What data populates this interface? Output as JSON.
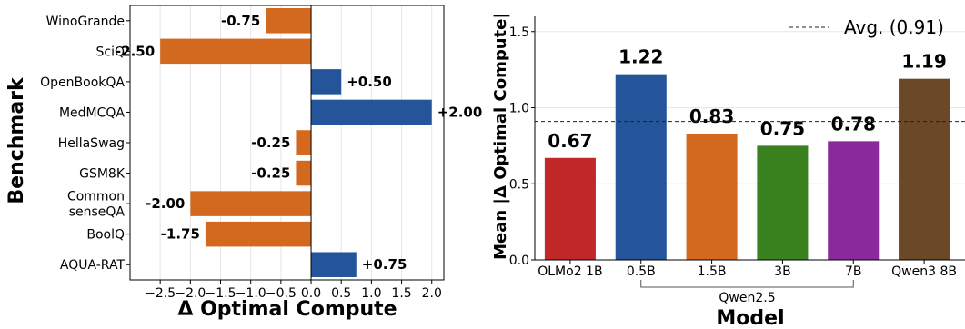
{
  "chart_data": [
    {
      "type": "bar",
      "orientation": "horizontal",
      "title": "",
      "xlabel": "Δ Optimal Compute",
      "ylabel": "Benchmark",
      "xlim": [
        -3.0,
        2.2
      ],
      "xticks": [
        -2.5,
        -2.0,
        -1.5,
        -1.0,
        -0.5,
        0.0,
        0.5,
        1.0,
        1.5,
        2.0
      ],
      "xtick_labels": [
        "−2.5",
        "−2.0",
        "−1.5",
        "−1.0",
        "−0.5",
        "0.0",
        "0.5",
        "1.0",
        "1.5",
        "2.0"
      ],
      "grid": "vertical",
      "categories": [
        "WinoGrande",
        "SciQ",
        "OpenBookQA",
        "MedMCQA",
        "HellaSwag",
        "GSM8K",
        "Common senseQA",
        "BoolQ",
        "AQUA-RAT"
      ],
      "category_lines": [
        [
          "WinoGrande"
        ],
        [
          "SciQ"
        ],
        [
          "OpenBookQA"
        ],
        [
          "MedMCQA"
        ],
        [
          "HellaSwag"
        ],
        [
          "GSM8K"
        ],
        [
          "Common",
          "senseQA"
        ],
        [
          "BoolQ"
        ],
        [
          "AQUA-RAT"
        ]
      ],
      "values": [
        -0.75,
        -2.5,
        0.5,
        2.0,
        -0.25,
        -0.25,
        -2.0,
        -1.75,
        0.75
      ],
      "value_labels": [
        "-0.75",
        "-2.50",
        "+0.50",
        "+2.00",
        "-0.25",
        "-0.25",
        "-2.00",
        "-1.75",
        "+0.75"
      ],
      "colors": {
        "negative": "#d2691e",
        "positive": "#24559a"
      }
    },
    {
      "type": "bar",
      "orientation": "vertical",
      "title": "",
      "xlabel": "Model",
      "ylabel": "Mean |Δ Optimal Compute|",
      "ylim": [
        0.0,
        1.6
      ],
      "yticks": [
        0.0,
        0.5,
        1.0,
        1.5
      ],
      "ytick_labels": [
        "0.0",
        "0.5",
        "1.0",
        "1.5"
      ],
      "grid": "horizontal",
      "categories": [
        "OLMo2 1B",
        "0.5B",
        "1.5B",
        "3B",
        "7B",
        "Qwen3 8B"
      ],
      "values": [
        0.67,
        1.22,
        0.83,
        0.75,
        0.78,
        1.19
      ],
      "value_labels": [
        "0.67",
        "1.22",
        "0.83",
        "0.75",
        "0.78",
        "1.19"
      ],
      "colors": [
        "#c0282a",
        "#24559a",
        "#d2691e",
        "#3a8220",
        "#8a2a9a",
        "#6a4828"
      ],
      "reference_line": {
        "value": 0.91,
        "label": "Avg. (0.91)",
        "style": "dashed"
      },
      "legend": "top-right",
      "group_label": {
        "text": "Qwen2.5",
        "members": [
          "0.5B",
          "1.5B",
          "3B",
          "7B"
        ]
      }
    }
  ]
}
